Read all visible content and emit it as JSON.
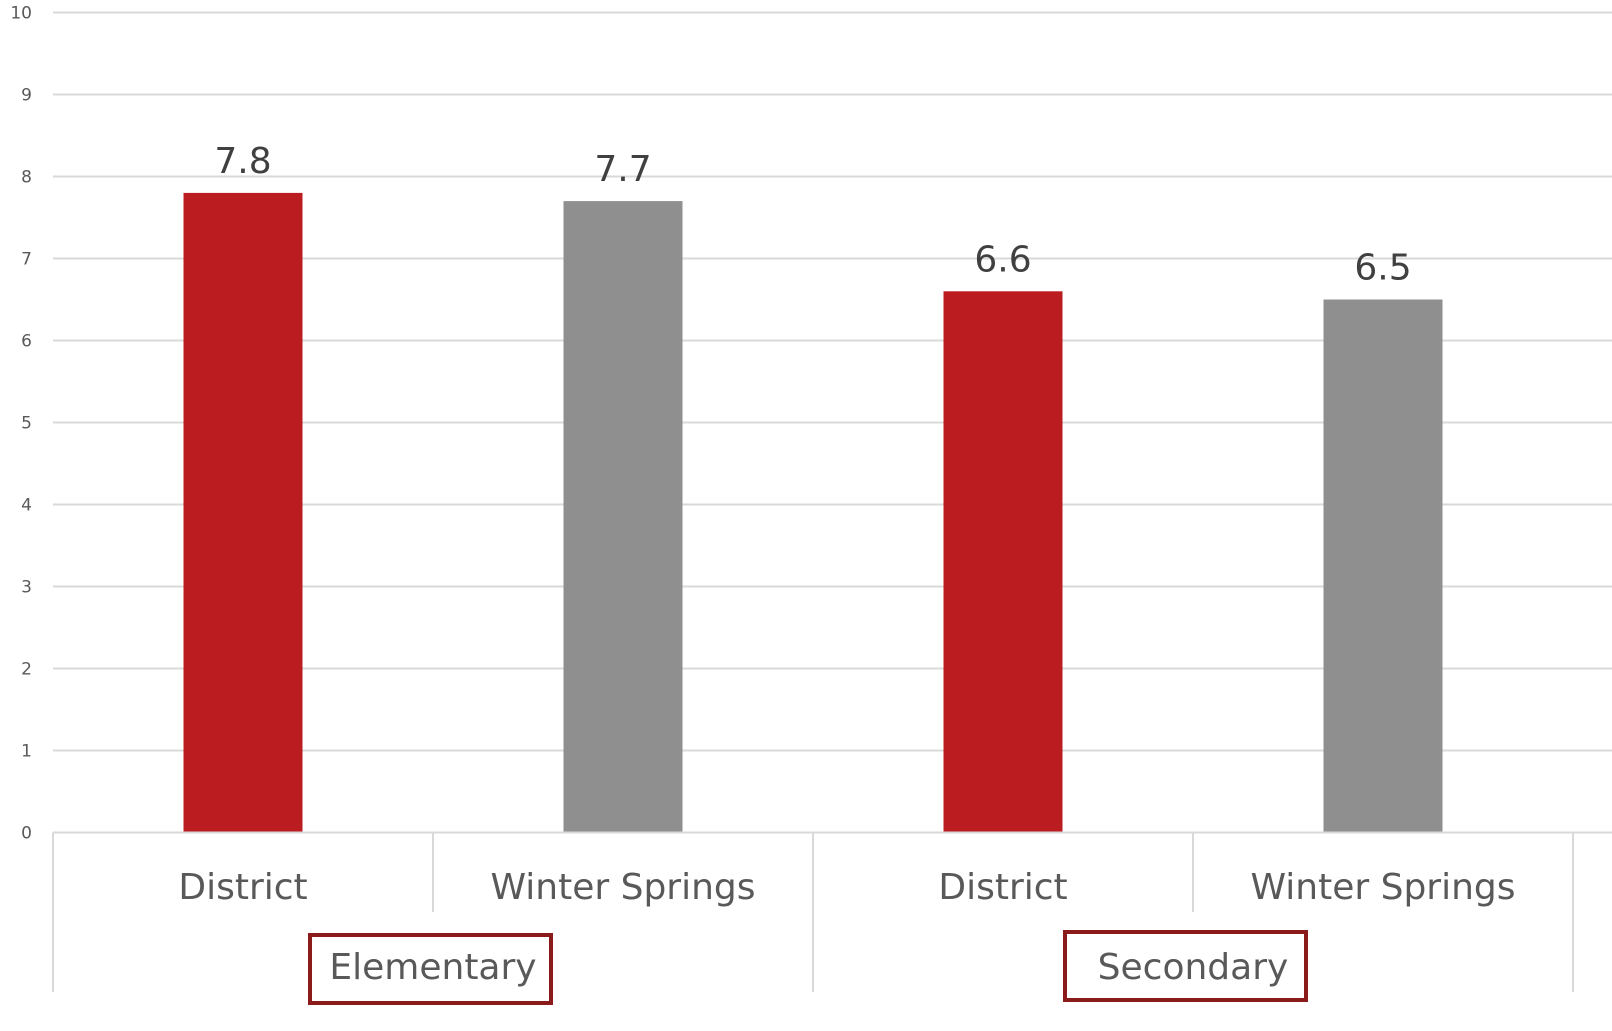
{
  "chart_data": {
    "type": "bar",
    "title": "",
    "xlabel": "",
    "ylabel": "",
    "ylim": [
      0,
      10
    ],
    "yticks": [
      0,
      1,
      2,
      3,
      4,
      5,
      6,
      7,
      8,
      9,
      10
    ],
    "grid": true,
    "groups": [
      "Elementary",
      "Secondary"
    ],
    "categories": [
      "District",
      "Winter Springs",
      "District",
      "Winter Springs"
    ],
    "category_group": [
      0,
      0,
      1,
      1
    ],
    "values": [
      7.8,
      7.7,
      6.6,
      6.5
    ],
    "data_labels": [
      "7.8",
      "7.7",
      "6.6",
      "6.5"
    ],
    "bar_colors": [
      "#bb1c1f",
      "#8f8f8f",
      "#bb1c1f",
      "#8f8f8f"
    ],
    "gridline_color": "#d9d9d9",
    "group_box_color": "#8b1a1a"
  }
}
